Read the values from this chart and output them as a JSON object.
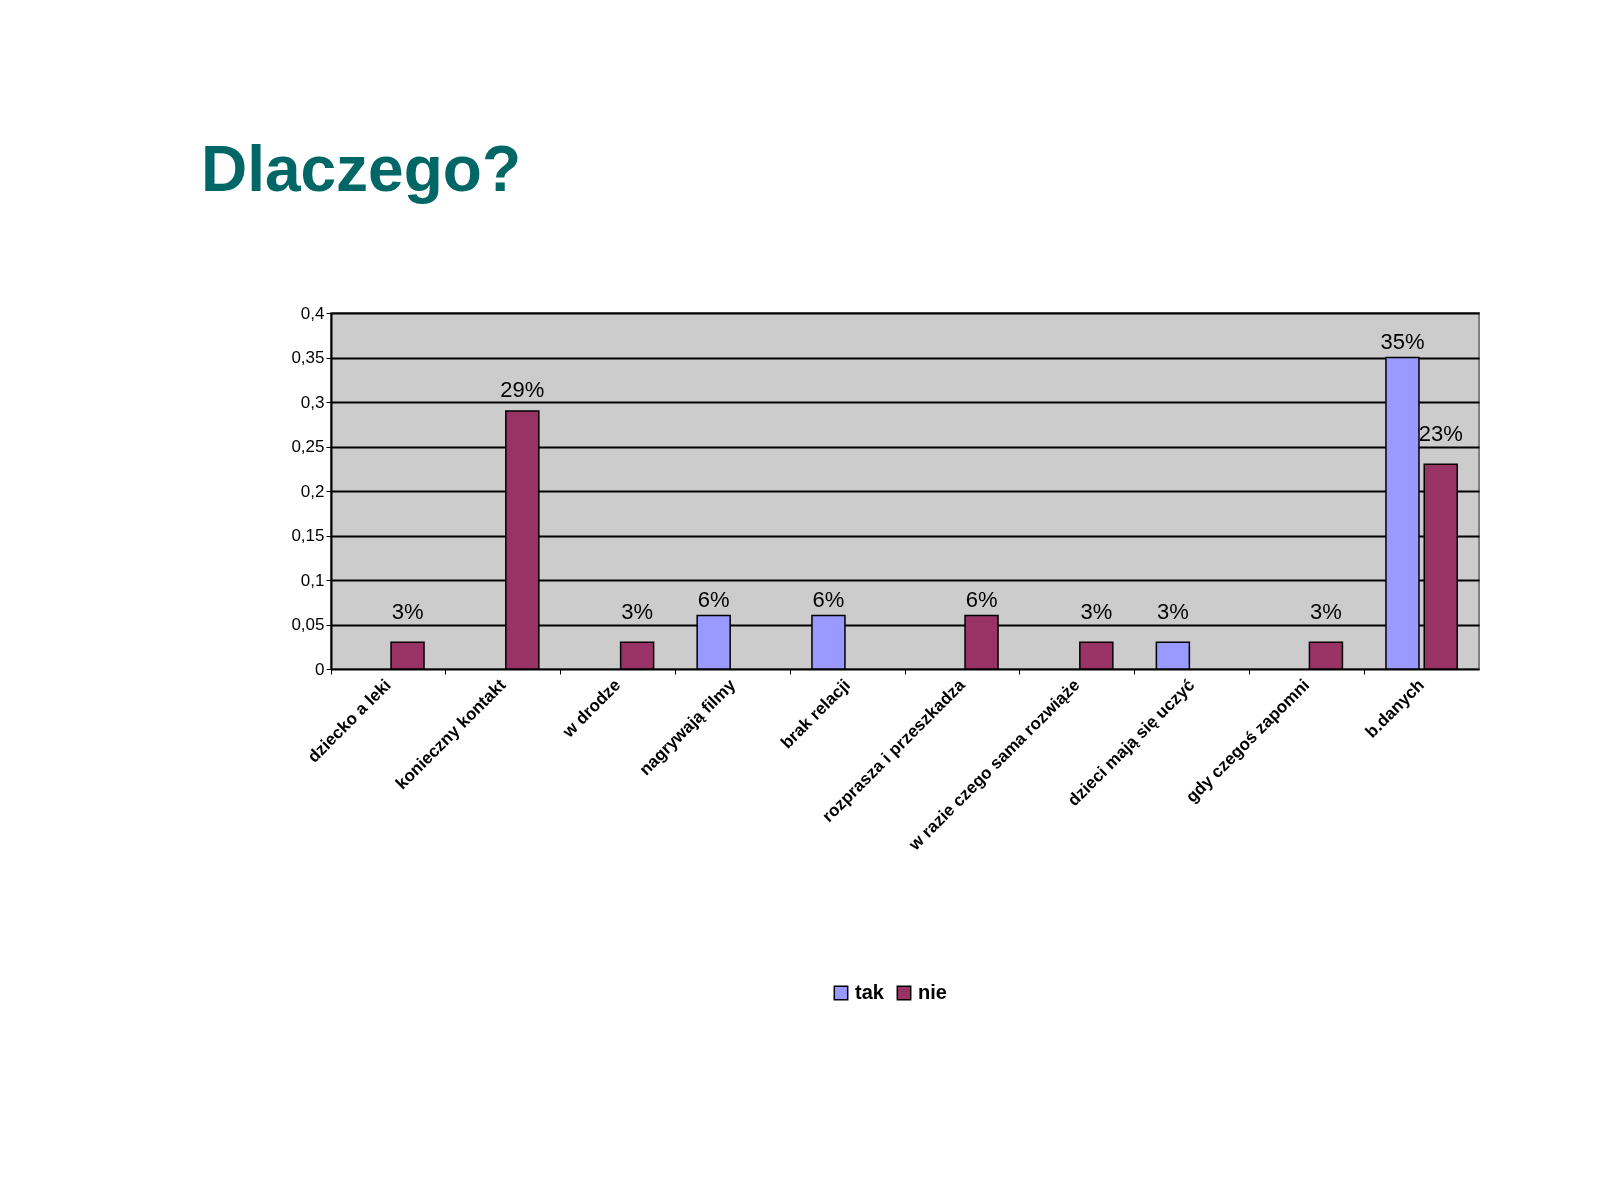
{
  "chart_data": {
    "type": "bar",
    "title": "Dlaczego?",
    "categories": [
      "dziecko a leki",
      "konieczny kontakt",
      "w drodze",
      "nagrywają filmy",
      "brak relacji",
      "rozprasza i przeszkadza",
      "w razie czego sama rozwiąże",
      "dzieci mają się uczyć",
      "gdy czegoś zapomni",
      "b.danych"
    ],
    "series": [
      {
        "name": "tak",
        "color": "#9999ff",
        "values": [
          null,
          null,
          null,
          0.06,
          0.06,
          null,
          null,
          0.03,
          null,
          0.35
        ],
        "value_labels": [
          null,
          null,
          null,
          "6%",
          "6%",
          null,
          null,
          "3%",
          null,
          "35%"
        ]
      },
      {
        "name": "nie",
        "color": "#993366",
        "values": [
          0.03,
          0.29,
          0.03,
          null,
          null,
          0.06,
          0.03,
          null,
          0.03,
          0.23
        ],
        "value_labels": [
          "3%",
          "29%",
          "3%",
          null,
          null,
          "6%",
          "3%",
          null,
          "3%",
          "23%"
        ]
      }
    ],
    "ylim": [
      0,
      0.4
    ],
    "yticks": [
      0,
      {
        "value": 0.05,
        "label": "0,05"
      },
      {
        "value": 0.1,
        "label": "0,1"
      },
      {
        "value": 0.15,
        "label": "0,15"
      },
      {
        "value": 0.2,
        "label": "0,2"
      },
      {
        "value": 0.25,
        "label": "0,25"
      },
      {
        "value": 0.3,
        "label": "0,3"
      },
      {
        "value": 0.35,
        "label": "0,35"
      },
      {
        "value": 0.4,
        "label": "0,4"
      }
    ],
    "grid": "y",
    "legend": "bottom"
  }
}
